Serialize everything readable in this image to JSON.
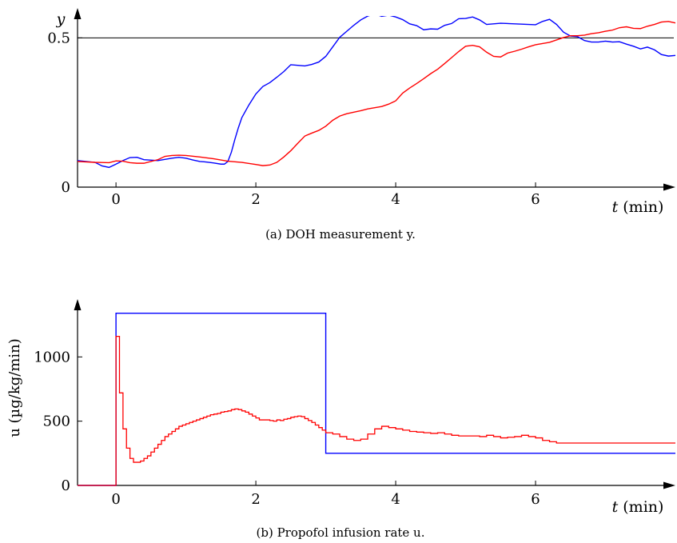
{
  "chart_data": [
    {
      "type": "line",
      "caption": "(a) DOH measurement y.",
      "ylabel": "y",
      "xlabel_var": "t",
      "xlabel_unit": "(min)",
      "xlim": [
        -0.55,
        8.0
      ],
      "ylim": [
        0,
        0.6
      ],
      "xticks": [
        {
          "v": 0,
          "label": "0"
        },
        {
          "v": 2,
          "label": "2"
        },
        {
          "v": 4,
          "label": "4"
        },
        {
          "v": 6,
          "label": "6"
        }
      ],
      "yticks": [
        {
          "v": 0,
          "label": "0"
        },
        {
          "v": 0.5,
          "label": "0.5"
        }
      ],
      "reference_line": 0.5,
      "grid": false,
      "series": [
        {
          "color": "#0000ff",
          "x": [
            -0.55,
            -0.3,
            -0.2,
            -0.1,
            0.0,
            0.1,
            0.2,
            0.3,
            0.4,
            0.6,
            0.8,
            0.9,
            1.0,
            1.1,
            1.2,
            1.3,
            1.4,
            1.5,
            1.55,
            1.6,
            1.65,
            1.7,
            1.75,
            1.8,
            1.9,
            2.0,
            2.1,
            2.2,
            2.3,
            2.4,
            2.5,
            2.6,
            2.7,
            2.8,
            2.9,
            3.0,
            3.1,
            3.2,
            3.3,
            3.4,
            3.5,
            3.6,
            3.7,
            3.8,
            3.9,
            4.0,
            4.1,
            4.2,
            4.3,
            4.4,
            4.5,
            4.6,
            4.7,
            4.8,
            4.9,
            5.0,
            5.1,
            5.2,
            5.3,
            5.5,
            6.0,
            6.1,
            6.2,
            6.3,
            6.4,
            6.5,
            6.6,
            6.7,
            6.8,
            6.9,
            7.0,
            7.1,
            7.2,
            7.3,
            7.4,
            7.5,
            7.6,
            7.7,
            7.8,
            7.9,
            8.0
          ],
          "y": [
            0.089,
            0.083,
            0.071,
            0.066,
            0.077,
            0.089,
            0.099,
            0.1,
            0.092,
            0.089,
            0.097,
            0.1,
            0.097,
            0.091,
            0.086,
            0.084,
            0.081,
            0.077,
            0.077,
            0.086,
            0.117,
            0.16,
            0.199,
            0.233,
            0.275,
            0.312,
            0.337,
            0.35,
            0.368,
            0.387,
            0.41,
            0.408,
            0.406,
            0.411,
            0.419,
            0.438,
            0.47,
            0.502,
            0.522,
            0.542,
            0.56,
            0.573,
            0.58,
            0.572,
            0.576,
            0.57,
            0.561,
            0.547,
            0.541,
            0.527,
            0.53,
            0.529,
            0.542,
            0.548,
            0.564,
            0.565,
            0.57,
            0.56,
            0.545,
            0.549,
            0.544,
            0.555,
            0.562,
            0.545,
            0.519,
            0.506,
            0.504,
            0.491,
            0.486,
            0.486,
            0.489,
            0.486,
            0.487,
            0.479,
            0.472,
            0.463,
            0.469,
            0.46,
            0.444,
            0.439,
            0.441
          ]
        },
        {
          "color": "#ff0000",
          "x": [
            -0.55,
            -0.3,
            -0.1,
            0.0,
            0.1,
            0.2,
            0.3,
            0.4,
            0.6,
            0.7,
            0.8,
            0.9,
            1.0,
            1.2,
            1.4,
            1.6,
            1.8,
            2.0,
            2.1,
            2.2,
            2.3,
            2.4,
            2.5,
            2.6,
            2.7,
            2.8,
            2.9,
            3.0,
            3.1,
            3.2,
            3.3,
            3.4,
            3.5,
            3.6,
            3.7,
            3.8,
            3.9,
            4.0,
            4.1,
            4.2,
            4.3,
            4.4,
            4.5,
            4.6,
            4.7,
            4.8,
            4.9,
            5.0,
            5.1,
            5.2,
            5.3,
            5.4,
            5.5,
            5.6,
            5.7,
            5.8,
            5.9,
            6.0,
            6.1,
            6.2,
            6.3,
            6.4,
            6.5,
            6.6,
            6.7,
            6.8,
            6.9,
            7.0,
            7.1,
            7.2,
            7.3,
            7.4,
            7.5,
            7.6,
            7.7,
            7.8,
            7.9,
            8.0
          ],
          "y": [
            0.086,
            0.083,
            0.082,
            0.088,
            0.087,
            0.082,
            0.08,
            0.08,
            0.092,
            0.103,
            0.106,
            0.107,
            0.106,
            0.101,
            0.095,
            0.087,
            0.083,
            0.076,
            0.072,
            0.074,
            0.083,
            0.101,
            0.122,
            0.147,
            0.171,
            0.181,
            0.19,
            0.204,
            0.224,
            0.238,
            0.246,
            0.251,
            0.256,
            0.262,
            0.266,
            0.27,
            0.278,
            0.289,
            0.315,
            0.332,
            0.347,
            0.363,
            0.38,
            0.395,
            0.414,
            0.434,
            0.454,
            0.472,
            0.475,
            0.47,
            0.452,
            0.438,
            0.436,
            0.449,
            0.455,
            0.462,
            0.47,
            0.477,
            0.481,
            0.485,
            0.493,
            0.501,
            0.507,
            0.507,
            0.509,
            0.514,
            0.517,
            0.522,
            0.526,
            0.534,
            0.537,
            0.532,
            0.531,
            0.539,
            0.545,
            0.553,
            0.555,
            0.55
          ]
        }
      ]
    },
    {
      "type": "line",
      "caption": "(b) Propofol infusion rate u.",
      "ylabel": "u (µg/kg/min)",
      "xlabel_var": "t",
      "xlabel_unit": "(min)",
      "xlim": [
        -0.55,
        8.0
      ],
      "ylim": [
        0,
        1450
      ],
      "xticks": [
        {
          "v": 0,
          "label": "0"
        },
        {
          "v": 2,
          "label": "2"
        },
        {
          "v": 4,
          "label": "4"
        },
        {
          "v": 6,
          "label": "6"
        }
      ],
      "yticks": [
        {
          "v": 0,
          "label": "0"
        },
        {
          "v": 500,
          "label": "500"
        },
        {
          "v": 1000,
          "label": "1000"
        }
      ],
      "grid": false,
      "series": [
        {
          "color": "#0000ff",
          "step": true,
          "x": [
            -0.55,
            0.0,
            3.0,
            8.0
          ],
          "y": [
            0,
            1340,
            250,
            250
          ]
        },
        {
          "color": "#ff0000",
          "step": true,
          "x": [
            -0.55,
            0.0,
            0.05,
            0.1,
            0.15,
            0.2,
            0.25,
            0.3,
            0.35,
            0.4,
            0.45,
            0.5,
            0.55,
            0.6,
            0.65,
            0.7,
            0.75,
            0.8,
            0.85,
            0.9,
            0.95,
            1.0,
            1.05,
            1.1,
            1.15,
            1.2,
            1.25,
            1.3,
            1.35,
            1.4,
            1.45,
            1.5,
            1.55,
            1.6,
            1.65,
            1.7,
            1.75,
            1.8,
            1.85,
            1.9,
            1.95,
            2.0,
            2.05,
            2.1,
            2.15,
            2.2,
            2.25,
            2.3,
            2.35,
            2.4,
            2.45,
            2.5,
            2.55,
            2.6,
            2.65,
            2.7,
            2.75,
            2.8,
            2.85,
            2.9,
            2.95,
            3.0,
            3.1,
            3.2,
            3.3,
            3.4,
            3.5,
            3.6,
            3.7,
            3.8,
            3.9,
            4.0,
            4.1,
            4.2,
            4.3,
            4.4,
            4.5,
            4.6,
            4.7,
            4.8,
            4.9,
            5.0,
            5.1,
            5.2,
            5.3,
            5.4,
            5.5,
            5.6,
            5.7,
            5.8,
            5.9,
            6.0,
            6.1,
            6.2,
            6.3,
            6.4,
            6.5,
            6.6,
            6.7,
            6.8,
            6.9,
            7.0,
            7.1,
            7.2,
            7.3,
            7.4,
            7.5,
            7.6,
            7.7,
            7.8,
            7.9,
            8.0
          ],
          "y": [
            0,
            1160,
            720,
            440,
            290,
            210,
            180,
            180,
            190,
            210,
            230,
            260,
            290,
            320,
            350,
            380,
            400,
            420,
            440,
            460,
            470,
            480,
            490,
            500,
            510,
            520,
            530,
            540,
            550,
            555,
            560,
            570,
            575,
            580,
            590,
            595,
            590,
            580,
            570,
            555,
            540,
            525,
            510,
            510,
            510,
            505,
            500,
            510,
            505,
            515,
            520,
            530,
            535,
            540,
            535,
            520,
            505,
            490,
            470,
            450,
            430,
            410,
            400,
            380,
            360,
            350,
            360,
            400,
            440,
            460,
            450,
            440,
            430,
            420,
            415,
            410,
            405,
            410,
            400,
            390,
            385,
            385,
            385,
            380,
            390,
            380,
            370,
            375,
            380,
            390,
            380,
            370,
            350,
            340,
            330,
            330,
            330,
            330,
            330,
            330,
            330,
            330,
            330,
            330,
            330,
            330,
            330,
            330,
            330,
            330,
            330,
            330
          ]
        }
      ]
    }
  ]
}
